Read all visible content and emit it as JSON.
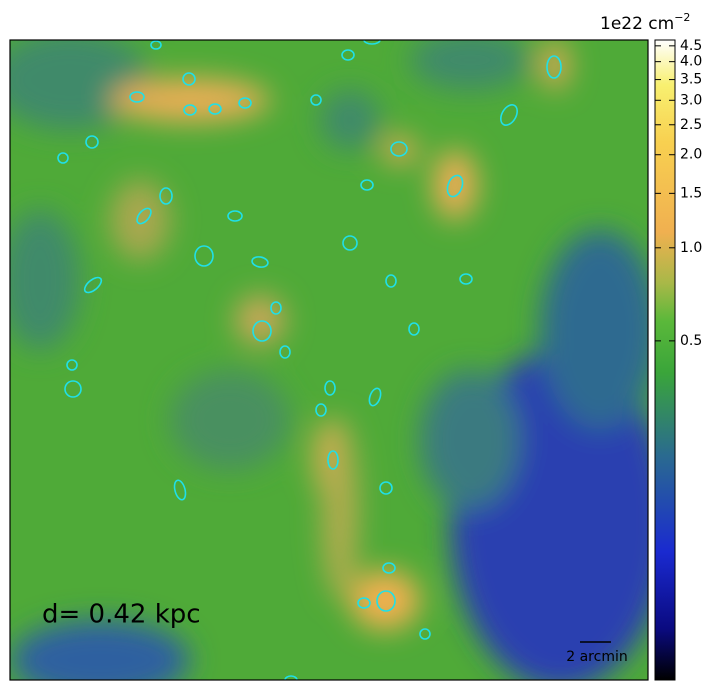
{
  "chart_data": {
    "type": "image",
    "annotation": "d= 0.42 kpc",
    "scale_bar_label": "2 arcmin",
    "colorbar": {
      "label": "1e22 cm",
      "label_exponent": "−2",
      "log": true,
      "lim": [
        0.04,
        4.7
      ],
      "ticks": [
        0.5,
        {
          "value": 1,
          "label": "1.0"
        },
        1.5,
        {
          "value": 2,
          "label": "2.0"
        },
        2.5,
        {
          "value": 3,
          "label": "3.0"
        },
        3.5,
        {
          "value": 4,
          "label": "4.0"
        },
        4.5
      ]
    }
  }
}
